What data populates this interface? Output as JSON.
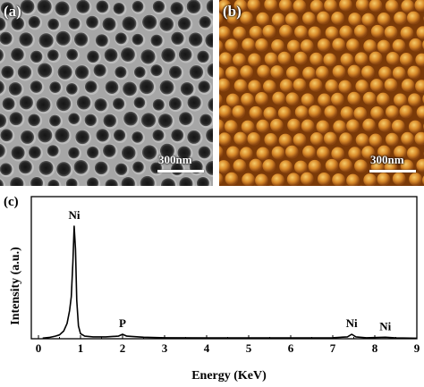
{
  "panels": {
    "a": {
      "label": "(a)",
      "scale_bar": "300nm"
    },
    "b": {
      "label": "(b)",
      "scale_bar": "300nm"
    },
    "c": {
      "label": "(c)"
    }
  },
  "colors": {
    "sem_background": "#a6a6a6",
    "sem_pore": "#262626",
    "afm_background": "#7a3a08",
    "afm_bump": "#d98a2a",
    "afm_highlight": "#f6cc6a",
    "spectrum_line": "#000000"
  },
  "chart_data": {
    "type": "line",
    "xlabel": "Energy (KeV)",
    "ylabel": "Intensity (a.u.)",
    "xlim": [
      0,
      9
    ],
    "ylim": [
      0,
      1
    ],
    "x_ticks": [
      "0",
      "1",
      "2",
      "3",
      "4",
      "5",
      "6",
      "7",
      "8",
      "9"
    ],
    "y_ticks_shown": false,
    "grid": false,
    "annotations": [
      {
        "text": "Ni",
        "x": 0.85
      },
      {
        "text": "P",
        "x": 2.0
      },
      {
        "text": "Ni",
        "x": 7.45
      },
      {
        "text": "Ni",
        "x": 8.25
      }
    ],
    "series": [
      {
        "values": [
          [
            0.1,
            0.005
          ],
          [
            0.25,
            0.01
          ],
          [
            0.4,
            0.02
          ],
          [
            0.5,
            0.03
          ],
          [
            0.6,
            0.06
          ],
          [
            0.68,
            0.12
          ],
          [
            0.74,
            0.22
          ],
          [
            0.78,
            0.33
          ],
          [
            0.82,
            0.6
          ],
          [
            0.85,
            0.88
          ],
          [
            0.88,
            0.7
          ],
          [
            0.91,
            0.3
          ],
          [
            0.95,
            0.1
          ],
          [
            1.0,
            0.04
          ],
          [
            1.1,
            0.02
          ],
          [
            1.3,
            0.015
          ],
          [
            1.6,
            0.015
          ],
          [
            1.9,
            0.02
          ],
          [
            2.0,
            0.035
          ],
          [
            2.1,
            0.02
          ],
          [
            2.5,
            0.012
          ],
          [
            3.0,
            0.008
          ],
          [
            4.0,
            0.006
          ],
          [
            5.0,
            0.006
          ],
          [
            6.0,
            0.006
          ],
          [
            7.0,
            0.008
          ],
          [
            7.35,
            0.015
          ],
          [
            7.45,
            0.035
          ],
          [
            7.55,
            0.015
          ],
          [
            7.8,
            0.008
          ],
          [
            8.25,
            0.012
          ],
          [
            8.5,
            0.006
          ],
          [
            9.0,
            0.004
          ]
        ]
      }
    ]
  }
}
